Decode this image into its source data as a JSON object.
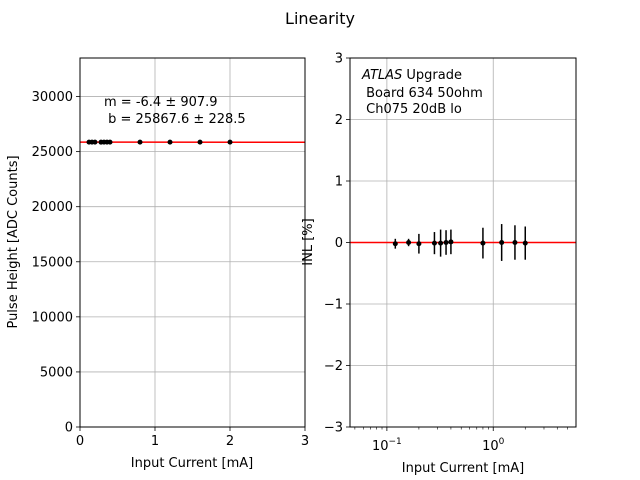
{
  "figure": {
    "title": "Linearity"
  },
  "chart_data": [
    {
      "type": "scatter",
      "xlabel": "Input Current [mA]",
      "ylabel": "Pulse Height [ADC Counts]",
      "xlim": [
        0,
        3
      ],
      "ylim": [
        0,
        33500
      ],
      "xscale": "linear",
      "xticks": [
        0,
        1,
        2,
        3
      ],
      "xtick_labels": [
        "0",
        "1",
        "2",
        "3"
      ],
      "yticks": [
        0,
        5000,
        10000,
        15000,
        20000,
        25000,
        30000
      ],
      "ytick_labels": [
        "0",
        "5000",
        "10000",
        "15000",
        "20000",
        "25000",
        "30000"
      ],
      "grid": true,
      "annotation_lines": [
        "m = -6.4 ± 907.9",
        " b = 25867.6 ± 228.5"
      ],
      "points": {
        "x": [
          0.12,
          0.16,
          0.2,
          0.28,
          0.32,
          0.36,
          0.4,
          0.8,
          1.2,
          1.6,
          2.0
        ],
        "y": [
          25860,
          25865,
          25862,
          25858,
          25864,
          25866,
          25861,
          25866,
          25863,
          25865,
          25862
        ]
      },
      "fit_line": {
        "slope": -6.4,
        "intercept": 25867.6,
        "color": "#ff0000"
      },
      "marker_color": "#000000"
    },
    {
      "type": "scatter",
      "xlabel": "Input Current [mA]",
      "ylabel": "INL [%]",
      "xscale": "log",
      "xlim": [
        0.045,
        6.0
      ],
      "ylim": [
        -3,
        3
      ],
      "xticks": [
        0.1,
        1
      ],
      "yticks": [
        -3,
        -2,
        -1,
        0,
        1,
        2,
        3
      ],
      "ytick_labels": [
        "−3",
        "−2",
        "−1",
        "0",
        "1",
        "2",
        "3"
      ],
      "grid": true,
      "legend_text": {
        "italic_part": "ATLAS",
        "rest": " Upgrade",
        "line2": " Board 634 50ohm",
        "line3": " Ch075 20dB lo"
      },
      "points": {
        "x": [
          0.12,
          0.16,
          0.2,
          0.28,
          0.32,
          0.36,
          0.4,
          0.8,
          1.2,
          1.6,
          2.0
        ],
        "y": [
          -0.02,
          0.0,
          -0.02,
          -0.01,
          -0.01,
          0.0,
          0.01,
          -0.01,
          0.0,
          0.0,
          -0.01
        ],
        "yerr": [
          0.08,
          0.06,
          0.16,
          0.18,
          0.22,
          0.2,
          0.2,
          0.25,
          0.3,
          0.28,
          0.27
        ]
      },
      "ref_line": {
        "y": 0,
        "color": "#ff0000"
      },
      "marker_color": "#000000"
    }
  ]
}
